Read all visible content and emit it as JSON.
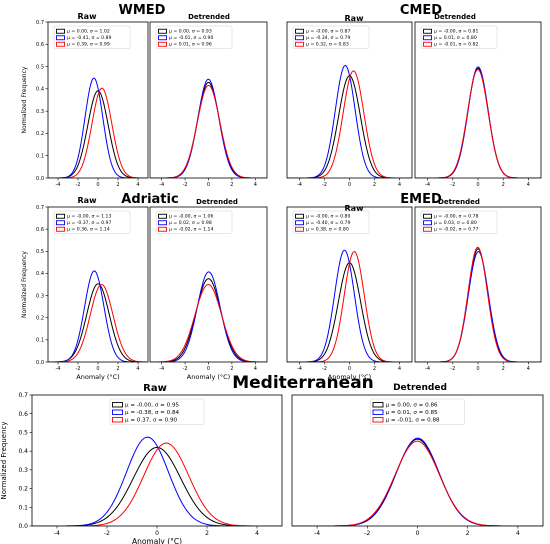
{
  "chart_data": [
    {
      "type": "line",
      "region": "WMED",
      "panel": "Raw",
      "ylabel": "Normalized Frequency",
      "xlabel": "",
      "xlim": [
        -5,
        5
      ],
      "ylim": [
        0,
        0.7
      ],
      "xticks": [
        -4,
        -2,
        0,
        2,
        4
      ],
      "yticks": [
        0.0,
        0.1,
        0.2,
        0.3,
        0.4,
        0.5,
        0.6,
        0.7
      ],
      "grid": false,
      "legend": "top-left",
      "series": [
        {
          "label": "μ = 0.00, σ = 1.02",
          "color": "#000000",
          "mu": 0.0,
          "sigma": 1.02
        },
        {
          "label": "μ = -0.41, σ = 0.89",
          "color": "#0000ff",
          "mu": -0.41,
          "sigma": 0.89
        },
        {
          "label": "μ = 0.39, σ = 0.99",
          "color": "#ff0000",
          "mu": 0.39,
          "sigma": 0.99
        }
      ]
    },
    {
      "type": "line",
      "region": "WMED",
      "panel": "Detrended",
      "ylabel": "",
      "xlabel": "",
      "xlim": [
        -5,
        5
      ],
      "ylim": [
        0,
        0.7
      ],
      "xticks": [
        -4,
        -2,
        0,
        2,
        4
      ],
      "yticks": [],
      "grid": false,
      "legend": "top-left",
      "series": [
        {
          "label": "μ = 0.00, σ = 0.93",
          "color": "#000000",
          "mu": 0.0,
          "sigma": 0.93
        },
        {
          "label": "μ = -0.01, σ = 0.90",
          "color": "#0000ff",
          "mu": -0.01,
          "sigma": 0.9
        },
        {
          "label": "μ = 0.01, σ = 0.96",
          "color": "#ff0000",
          "mu": 0.01,
          "sigma": 0.96
        }
      ]
    },
    {
      "type": "line",
      "region": "CMED",
      "panel": "Raw",
      "ylabel": "",
      "xlabel": "",
      "xlim": [
        -5,
        5
      ],
      "ylim": [
        0,
        0.7
      ],
      "xticks": [
        -4,
        -2,
        0,
        2,
        4
      ],
      "yticks": [],
      "grid": false,
      "legend": "top-left",
      "series": [
        {
          "label": "μ = -0.00, σ = 0.87",
          "color": "#000000",
          "mu": 0.0,
          "sigma": 0.87
        },
        {
          "label": "μ = -0.34, σ = 0.79",
          "color": "#0000ff",
          "mu": -0.34,
          "sigma": 0.79
        },
        {
          "label": "μ = 0.32, σ = 0.83",
          "color": "#ff0000",
          "mu": 0.32,
          "sigma": 0.83
        }
      ]
    },
    {
      "type": "line",
      "region": "CMED",
      "panel": "Detrended",
      "ylabel": "",
      "xlabel": "",
      "xlim": [
        -5,
        5
      ],
      "ylim": [
        0,
        0.7
      ],
      "xticks": [
        -4,
        -2,
        0,
        2,
        4
      ],
      "yticks": [],
      "grid": false,
      "legend": "top-left",
      "series": [
        {
          "label": "μ = -0.00, σ = 0.81",
          "color": "#000000",
          "mu": 0.0,
          "sigma": 0.81
        },
        {
          "label": "μ = 0.01, σ = 0.80",
          "color": "#0000ff",
          "mu": 0.01,
          "sigma": 0.8
        },
        {
          "label": "μ = -0.01, σ = 0.82",
          "color": "#ff0000",
          "mu": -0.01,
          "sigma": 0.82
        }
      ]
    },
    {
      "type": "line",
      "region": "Adriatic",
      "panel": "Raw",
      "ylabel": "Normalized Frequency",
      "xlabel": "Anomaly (°C)",
      "xlim": [
        -5,
        5
      ],
      "ylim": [
        0,
        0.7
      ],
      "xticks": [
        -4,
        -2,
        0,
        2,
        4
      ],
      "yticks": [
        0.0,
        0.1,
        0.2,
        0.3,
        0.4,
        0.5,
        0.6,
        0.7
      ],
      "grid": false,
      "legend": "top-left",
      "series": [
        {
          "label": "μ = -0.00, σ = 1.13",
          "color": "#000000",
          "mu": 0.0,
          "sigma": 1.13
        },
        {
          "label": "μ = -0.37, σ = 0.97",
          "color": "#0000ff",
          "mu": -0.37,
          "sigma": 0.97
        },
        {
          "label": "μ = 0.36, σ = 1.14",
          "color": "#ff0000",
          "mu": 0.36,
          "sigma": 1.14
        }
      ]
    },
    {
      "type": "line",
      "region": "Adriatic",
      "panel": "Detrended",
      "ylabel": "",
      "xlabel": "Anomaly (°C)",
      "xlim": [
        -5,
        5
      ],
      "ylim": [
        0,
        0.7
      ],
      "xticks": [
        -4,
        -2,
        0,
        2,
        4
      ],
      "yticks": [],
      "grid": false,
      "legend": "top-left",
      "series": [
        {
          "label": "μ = -0.00, σ = 1.06",
          "color": "#000000",
          "mu": 0.0,
          "sigma": 1.06
        },
        {
          "label": "μ = 0.02, σ = 0.98",
          "color": "#0000ff",
          "mu": 0.02,
          "sigma": 0.98
        },
        {
          "label": "μ = -0.02, σ = 1.14",
          "color": "#ff0000",
          "mu": -0.02,
          "sigma": 1.14
        }
      ]
    },
    {
      "type": "line",
      "region": "EMED",
      "panel": "Raw",
      "ylabel": "",
      "xlabel": "Anomaly (°C)",
      "xlim": [
        -5,
        5
      ],
      "ylim": [
        0,
        0.7
      ],
      "xticks": [
        -4,
        -2,
        0,
        2,
        4
      ],
      "yticks": [],
      "grid": false,
      "legend": "top-left",
      "series": [
        {
          "label": "μ = -0.00, σ = 0.89",
          "color": "#000000",
          "mu": 0.0,
          "sigma": 0.89
        },
        {
          "label": "μ = -0.40, σ = 0.79",
          "color": "#0000ff",
          "mu": -0.4,
          "sigma": 0.79
        },
        {
          "label": "μ = 0.38, σ = 0.80",
          "color": "#ff0000",
          "mu": 0.38,
          "sigma": 0.8
        }
      ]
    },
    {
      "type": "line",
      "region": "EMED",
      "panel": "Detrended",
      "ylabel": "",
      "xlabel": "",
      "xlim": [
        -5,
        5
      ],
      "ylim": [
        0,
        0.7
      ],
      "xticks": [
        -4,
        -2,
        0,
        2,
        4
      ],
      "yticks": [],
      "grid": false,
      "legend": "top-left",
      "series": [
        {
          "label": "μ = -0.00, σ = 0.78",
          "color": "#000000",
          "mu": 0.0,
          "sigma": 0.78
        },
        {
          "label": "μ = 0.03, σ = 0.80",
          "color": "#0000ff",
          "mu": 0.03,
          "sigma": 0.8
        },
        {
          "label": "μ = -0.02, σ = 0.77",
          "color": "#ff0000",
          "mu": -0.02,
          "sigma": 0.77
        }
      ]
    },
    {
      "type": "line",
      "region": "Mediterranean",
      "panel": "Raw",
      "ylabel": "Normalized Frequency",
      "xlabel": "Anomaly (°C)",
      "xlim": [
        -5,
        5
      ],
      "ylim": [
        0,
        0.7
      ],
      "xticks": [
        -4,
        -2,
        0,
        2,
        4
      ],
      "yticks": [
        0.0,
        0.1,
        0.2,
        0.3,
        0.4,
        0.5,
        0.6,
        0.7
      ],
      "grid": false,
      "legend": "top-center",
      "series": [
        {
          "label": "μ = -0.00, σ = 0.95",
          "color": "#000000",
          "mu": 0.0,
          "sigma": 0.95
        },
        {
          "label": "μ = -0.38, σ = 0.84",
          "color": "#0000ff",
          "mu": -0.38,
          "sigma": 0.84
        },
        {
          "label": "μ = 0.37, σ = 0.90",
          "color": "#ff0000",
          "mu": 0.37,
          "sigma": 0.9
        }
      ]
    },
    {
      "type": "line",
      "region": "Mediterranean",
      "panel": "Detrended",
      "ylabel": "",
      "xlabel": "",
      "xlim": [
        -5,
        5
      ],
      "ylim": [
        0,
        0.7
      ],
      "xticks": [
        -4,
        -2,
        0,
        2,
        4
      ],
      "yticks": [],
      "grid": false,
      "legend": "top-center",
      "series": [
        {
          "label": "μ = 0.00, σ = 0.86",
          "color": "#000000",
          "mu": 0.0,
          "sigma": 0.86
        },
        {
          "label": "μ = 0.01, σ = 0.85",
          "color": "#0000ff",
          "mu": 0.01,
          "sigma": 0.85
        },
        {
          "label": "μ = -0.01, σ = 0.88",
          "color": "#ff0000",
          "mu": -0.01,
          "sigma": 0.88
        }
      ]
    }
  ]
}
